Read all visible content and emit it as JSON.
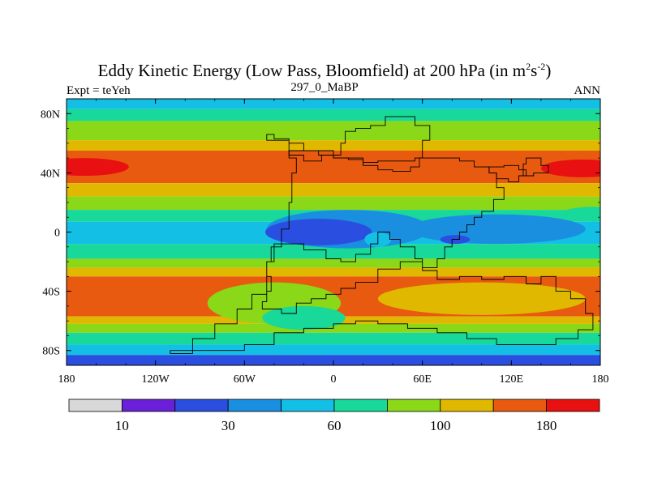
{
  "chart_data": {
    "type": "heatmap",
    "title_main": "Eddy Kinetic Energy (Low Pass, Bloomfield) at 200 hPa (in m",
    "title_sup1": "2",
    "title_mid": "s",
    "title_sup2": "-2",
    "title_end": ")",
    "subtitle_left": "Expt = teYeh",
    "subtitle_center": "297_0_MaBP",
    "subtitle_right": "ANN",
    "x_range": [
      -180,
      180
    ],
    "y_range": [
      -90,
      90
    ],
    "x_ticks": [
      {
        "value": -180,
        "label": "180"
      },
      {
        "value": -120,
        "label": "120W"
      },
      {
        "value": -60,
        "label": "60W"
      },
      {
        "value": 0,
        "label": "0"
      },
      {
        "value": 60,
        "label": "60E"
      },
      {
        "value": 120,
        "label": "120E"
      },
      {
        "value": 180,
        "label": "180"
      }
    ],
    "y_ticks": [
      {
        "value": 80,
        "label": "80N"
      },
      {
        "value": 40,
        "label": "40N"
      },
      {
        "value": 0,
        "label": "0"
      },
      {
        "value": -40,
        "label": "40S"
      },
      {
        "value": -80,
        "label": "80S"
      }
    ],
    "zonal_bands": [
      {
        "lat_from": 90,
        "lat_to": 83,
        "level": 4
      },
      {
        "lat_from": 83,
        "lat_to": 75,
        "level": 5
      },
      {
        "lat_from": 75,
        "lat_to": 62,
        "level": 6
      },
      {
        "lat_from": 62,
        "lat_to": 55,
        "level": 7
      },
      {
        "lat_from": 55,
        "lat_to": 33,
        "level": 8
      },
      {
        "lat_from": 33,
        "lat_to": 24,
        "level": 7
      },
      {
        "lat_from": 24,
        "lat_to": 15,
        "level": 6
      },
      {
        "lat_from": 15,
        "lat_to": 7,
        "level": 5
      },
      {
        "lat_from": 7,
        "lat_to": -8,
        "level": 4
      },
      {
        "lat_from": -8,
        "lat_to": -18,
        "level": 5
      },
      {
        "lat_from": -18,
        "lat_to": -24,
        "level": 6
      },
      {
        "lat_from": -24,
        "lat_to": -30,
        "level": 7
      },
      {
        "lat_from": -30,
        "lat_to": -57,
        "level": 8
      },
      {
        "lat_from": -57,
        "lat_to": -62,
        "level": 7
      },
      {
        "lat_from": -62,
        "lat_to": -68,
        "level": 6
      },
      {
        "lat_from": -68,
        "lat_to": -76,
        "level": 5
      },
      {
        "lat_from": -76,
        "lat_to": -83,
        "level": 4
      },
      {
        "lat_from": -83,
        "lat_to": -90,
        "level": 2
      }
    ],
    "features": [
      {
        "level": 9,
        "lon": -168,
        "lat": 44,
        "rx": 30,
        "ry": 6
      },
      {
        "level": 9,
        "lon": 168,
        "lat": 43,
        "rx": 28,
        "ry": 6
      },
      {
        "level": 3,
        "lon": 10,
        "lat": 2,
        "rx": 55,
        "ry": 13
      },
      {
        "level": 3,
        "lon": 110,
        "lat": 2,
        "rx": 60,
        "ry": 10
      },
      {
        "level": 2,
        "lon": -10,
        "lat": 0,
        "rx": 36,
        "ry": 9
      },
      {
        "level": 2,
        "lon": 82,
        "lat": -5,
        "rx": 10,
        "ry": 3
      },
      {
        "level": 4,
        "lon": 30,
        "lat": -5,
        "rx": 9,
        "ry": 5
      },
      {
        "level": 6,
        "lon": -40,
        "lat": -48,
        "rx": 45,
        "ry": 14
      },
      {
        "level": 5,
        "lon": -20,
        "lat": -58,
        "rx": 28,
        "ry": 8
      },
      {
        "level": 7,
        "lon": 100,
        "lat": -45,
        "rx": 70,
        "ry": 11
      },
      {
        "level": 5,
        "lon": 175,
        "lat": 12,
        "rx": 22,
        "ry": 5
      }
    ],
    "colorbar": {
      "colors": [
        "#d8d8d8",
        "#6a1fd8",
        "#2a4fe0",
        "#1a8fe0",
        "#14bfe6",
        "#18d89a",
        "#8ad818",
        "#e0b800",
        "#e85a10",
        "#e81010"
      ],
      "labels": [
        {
          "boundary": 1,
          "text": "10"
        },
        {
          "boundary": 3,
          "text": "30"
        },
        {
          "boundary": 5,
          "text": "60"
        },
        {
          "boundary": 7,
          "text": "100"
        },
        {
          "boundary": 9,
          "text": "180"
        }
      ]
    },
    "coastlines": [
      [
        [
          -45,
          66
        ],
        [
          -40,
          63
        ],
        [
          -30,
          60
        ],
        [
          -20,
          55
        ],
        [
          -10,
          52
        ],
        [
          0,
          50
        ],
        [
          10,
          49
        ],
        [
          20,
          45
        ],
        [
          30,
          42
        ],
        [
          40,
          41
        ],
        [
          52,
          44
        ],
        [
          58,
          50
        ],
        [
          60,
          62
        ],
        [
          65,
          72
        ],
        [
          55,
          78
        ],
        [
          45,
          78
        ],
        [
          35,
          72
        ],
        [
          25,
          70
        ],
        [
          15,
          68
        ],
        [
          8,
          60
        ],
        [
          5,
          52
        ],
        [
          -8,
          48
        ],
        [
          -20,
          52
        ],
        [
          -30,
          62
        ],
        [
          -45,
          66
        ]
      ],
      [
        [
          60,
          50
        ],
        [
          75,
          50
        ],
        [
          85,
          48
        ],
        [
          95,
          44
        ],
        [
          105,
          40
        ],
        [
          110,
          30
        ],
        [
          115,
          22
        ],
        [
          108,
          14
        ],
        [
          100,
          10
        ],
        [
          95,
          5
        ],
        [
          90,
          0
        ],
        [
          85,
          -5
        ],
        [
          80,
          -10
        ],
        [
          75,
          -18
        ],
        [
          70,
          -24
        ],
        [
          60,
          -18
        ],
        [
          55,
          -10
        ],
        [
          45,
          -5
        ],
        [
          38,
          0
        ],
        [
          30,
          -8
        ],
        [
          25,
          -15
        ],
        [
          15,
          -20
        ],
        [
          5,
          -18
        ],
        [
          -5,
          -12
        ],
        [
          -20,
          -8
        ],
        [
          -35,
          -10
        ],
        [
          -42,
          -20
        ],
        [
          -45,
          -30
        ],
        [
          -42,
          -40
        ],
        [
          -45,
          -47
        ],
        [
          -48,
          -52
        ],
        [
          -35,
          -55
        ],
        [
          -25,
          -48
        ],
        [
          -15,
          -45
        ],
        [
          -5,
          -42
        ],
        [
          5,
          -38
        ],
        [
          15,
          -34
        ],
        [
          30,
          -25
        ],
        [
          45,
          -20
        ],
        [
          60,
          -26
        ],
        [
          70,
          -32
        ],
        [
          85,
          -30
        ],
        [
          100,
          -32
        ],
        [
          115,
          -30
        ],
        [
          130,
          -35
        ],
        [
          140,
          -30
        ],
        [
          150,
          -40
        ],
        [
          160,
          -45
        ],
        [
          170,
          -55
        ],
        [
          175,
          -66
        ],
        [
          165,
          -72
        ],
        [
          150,
          -76
        ],
        [
          130,
          -76
        ],
        [
          110,
          -72
        ],
        [
          90,
          -68
        ],
        [
          70,
          -65
        ],
        [
          50,
          -62
        ],
        [
          30,
          -60
        ],
        [
          15,
          -62
        ],
        [
          0,
          -65
        ],
        [
          -20,
          -68
        ],
        [
          -40,
          -76
        ],
        [
          -60,
          -80
        ],
        [
          -85,
          -80
        ],
        [
          -110,
          -82
        ],
        [
          -95,
          -72
        ],
        [
          -80,
          -62
        ],
        [
          -65,
          -52
        ],
        [
          -55,
          -42
        ],
        [
          -45,
          -30
        ],
        [
          -45,
          -20
        ],
        [
          -40,
          -8
        ],
        [
          -35,
          2
        ],
        [
          -30,
          20
        ],
        [
          -28,
          40
        ],
        [
          -25,
          50
        ],
        [
          -30,
          55
        ],
        [
          -10,
          55
        ],
        [
          0,
          50
        ],
        [
          10,
          50
        ],
        [
          20,
          47
        ],
        [
          30,
          48
        ],
        [
          45,
          48
        ],
        [
          55,
          50
        ],
        [
          60,
          50
        ]
      ],
      [
        [
          105,
          44
        ],
        [
          115,
          45
        ],
        [
          125,
          42
        ],
        [
          130,
          38
        ],
        [
          125,
          34
        ],
        [
          118,
          36
        ],
        [
          110,
          40
        ],
        [
          105,
          44
        ]
      ],
      [
        [
          130,
          50
        ],
        [
          140,
          45
        ],
        [
          145,
          40
        ],
        [
          135,
          38
        ],
        [
          128,
          46
        ],
        [
          130,
          50
        ]
      ]
    ]
  }
}
